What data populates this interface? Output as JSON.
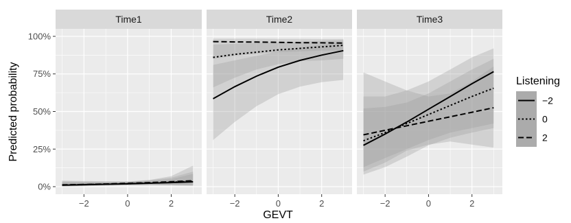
{
  "chart_data": {
    "type": "line",
    "xlabel": "GEVT",
    "ylabel": "Predicted probability",
    "xlim": [
      -3.3,
      3.4
    ],
    "ylim": [
      -0.05,
      1.05
    ],
    "x_ticks": [
      -2,
      0,
      2
    ],
    "x_tick_labels": [
      "−2",
      "0",
      "2"
    ],
    "y_ticks": [
      0,
      0.25,
      0.5,
      0.75,
      1.0
    ],
    "y_tick_labels": [
      "0%",
      "25%",
      "50%",
      "75%",
      "100%"
    ],
    "grid": true,
    "legend": {
      "title": "Listening",
      "position": "right",
      "entries": [
        {
          "label": "−2",
          "style": "solid"
        },
        {
          "label": "0",
          "style": "dotted"
        },
        {
          "label": "2",
          "style": "dashed"
        }
      ]
    },
    "colors": {
      "panel_bg": "#ebebeb",
      "strip_bg": "#d9d9d9",
      "grid_line": "#ffffff",
      "line": "#000000",
      "band": "#9a9a9a"
    },
    "x": [
      -3,
      -2,
      -1,
      0,
      1,
      2,
      3
    ],
    "facets": [
      {
        "label": "Time1",
        "series": [
          {
            "name": "−2",
            "values": [
              0.01,
              0.013,
              0.016,
              0.019,
              0.023,
              0.027,
              0.032
            ],
            "lower": [
              0.0,
              0.003,
              0.007,
              0.01,
              0.01,
              0.008,
              0.005
            ],
            "upper": [
              0.04,
              0.038,
              0.036,
              0.035,
              0.045,
              0.07,
              0.14
            ]
          },
          {
            "name": "0",
            "values": [
              0.011,
              0.014,
              0.017,
              0.02,
              0.025,
              0.03,
              0.036
            ],
            "lower": [
              0.002,
              0.005,
              0.008,
              0.01,
              0.011,
              0.01,
              0.008
            ],
            "upper": [
              0.035,
              0.033,
              0.032,
              0.033,
              0.042,
              0.06,
              0.1
            ]
          },
          {
            "name": "2",
            "values": [
              0.012,
              0.015,
              0.018,
              0.022,
              0.027,
              0.033,
              0.04
            ],
            "lower": [
              0.003,
              0.006,
              0.009,
              0.011,
              0.012,
              0.011,
              0.01
            ],
            "upper": [
              0.03,
              0.03,
              0.03,
              0.032,
              0.04,
              0.05,
              0.085
            ]
          }
        ]
      },
      {
        "label": "Time2",
        "series": [
          {
            "name": "−2",
            "values": [
              0.585,
              0.665,
              0.735,
              0.795,
              0.84,
              0.875,
              0.905
            ],
            "lower": [
              0.31,
              0.43,
              0.535,
              0.615,
              0.665,
              0.695,
              0.71
            ],
            "upper": [
              0.81,
              0.84,
              0.87,
              0.9,
              0.925,
              0.945,
              0.96
            ]
          },
          {
            "name": "0",
            "values": [
              0.86,
              0.88,
              0.895,
              0.91,
              0.92,
              0.93,
              0.94
            ],
            "lower": [
              0.66,
              0.725,
              0.78,
              0.815,
              0.835,
              0.84,
              0.85
            ],
            "upper": [
              0.945,
              0.95,
              0.955,
              0.96,
              0.965,
              0.97,
              0.975
            ]
          },
          {
            "name": "2",
            "values": [
              0.965,
              0.963,
              0.962,
              0.96,
              0.958,
              0.957,
              0.955
            ],
            "lower": [
              0.85,
              0.87,
              0.885,
              0.895,
              0.9,
              0.905,
              0.905
            ],
            "upper": [
              0.985,
              0.985,
              0.985,
              0.984,
              0.984,
              0.983,
              0.983
            ]
          }
        ]
      },
      {
        "label": "Time3",
        "series": [
          {
            "name": "−2",
            "values": [
              0.275,
              0.35,
              0.43,
              0.515,
              0.6,
              0.685,
              0.765
            ],
            "lower": [
              0.08,
              0.13,
              0.2,
              0.275,
              0.325,
              0.36,
              0.39
            ],
            "upper": [
              0.6,
              0.6,
              0.64,
              0.7,
              0.78,
              0.86,
              0.92
            ]
          },
          {
            "name": "0",
            "values": [
              0.305,
              0.36,
              0.42,
              0.48,
              0.54,
              0.6,
              0.655
            ],
            "lower": [
              0.13,
              0.19,
              0.25,
              0.31,
              0.36,
              0.39,
              0.42
            ],
            "upper": [
              0.52,
              0.53,
              0.56,
              0.62,
              0.7,
              0.78,
              0.85
            ]
          },
          {
            "name": "2",
            "values": [
              0.345,
              0.375,
              0.405,
              0.435,
              0.465,
              0.495,
              0.525
            ],
            "lower": [
              0.1,
              0.16,
              0.24,
              0.28,
              0.3,
              0.28,
              0.26
            ],
            "upper": [
              0.76,
              0.7,
              0.64,
              0.6,
              0.62,
              0.7,
              0.8
            ]
          }
        ]
      }
    ]
  }
}
